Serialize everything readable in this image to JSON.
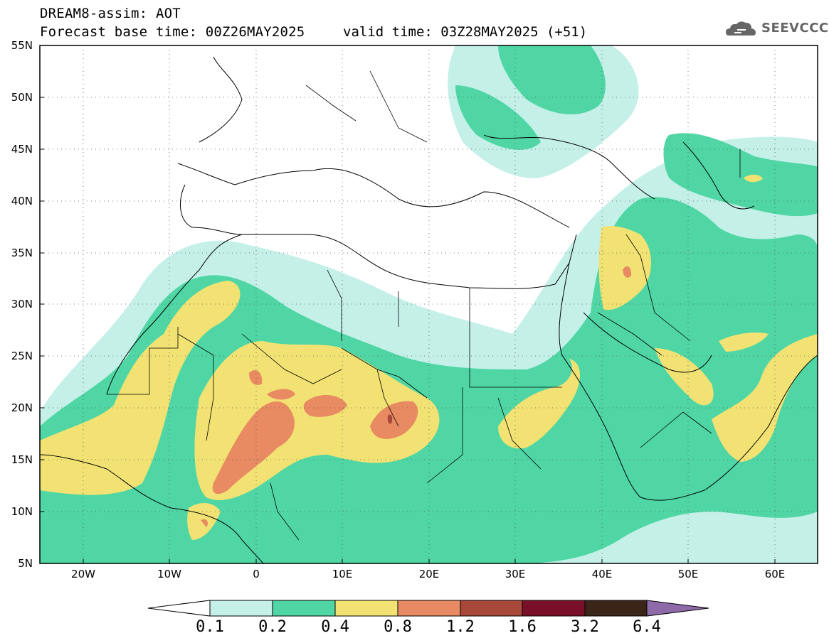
{
  "header": {
    "title": "DREAM8-assim: AOT",
    "base_time": "Forecast base time: 00Z26MAY2025",
    "valid_time": "valid time: 03Z28MAY2025 (+51)",
    "logo_text": "SEEVCCC"
  },
  "map": {
    "variable": "AOT",
    "lon_range": [
      -25,
      65
    ],
    "lat_range": [
      5,
      55
    ],
    "lat_ticks": [
      "55N",
      "50N",
      "45N",
      "40N",
      "35N",
      "30N",
      "25N",
      "20N",
      "15N",
      "10N",
      "5N"
    ],
    "lon_ticks": [
      "20W",
      "10W",
      "0",
      "10E",
      "20E",
      "30E",
      "40E",
      "50E",
      "60E"
    ]
  },
  "colorbar": {
    "levels": [
      "0.1",
      "0.2",
      "0.4",
      "0.8",
      "1.2",
      "1.6",
      "3.2",
      "6.4"
    ],
    "colors": [
      "#ffffff",
      "#c4f0e8",
      "#4fd6a4",
      "#f2e273",
      "#e88a62",
      "#a8483a",
      "#7a0f2a",
      "#3b2418",
      "#8f6aa8"
    ]
  }
}
